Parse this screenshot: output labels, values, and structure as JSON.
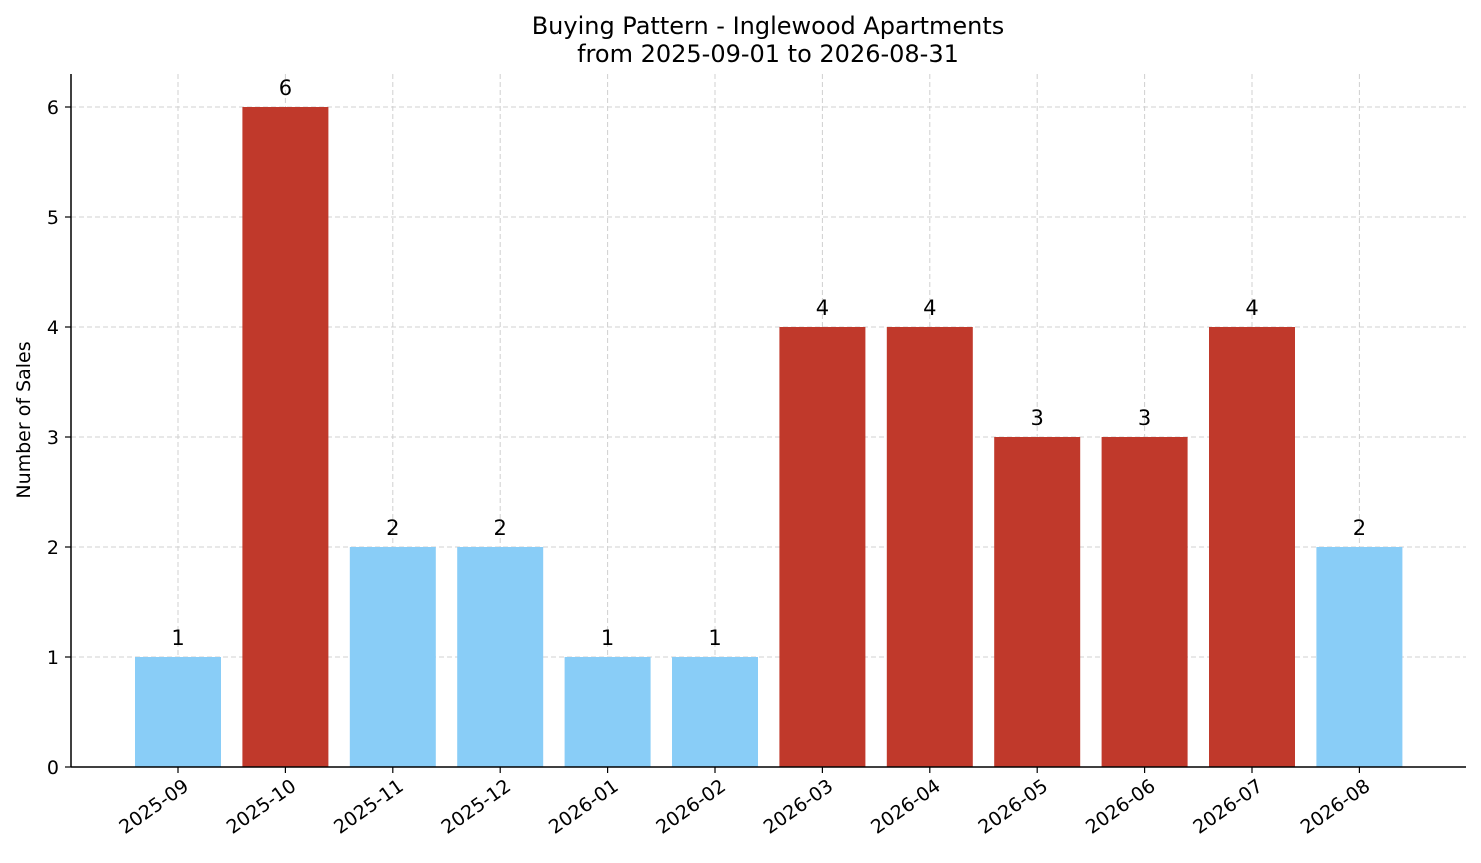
{
  "chart_data": {
    "type": "bar",
    "title": "Buying Pattern - Inglewood Apartments",
    "subtitle": "from 2025-09-01 to 2026-08-31",
    "xlabel": "",
    "ylabel": "Number of Sales",
    "categories": [
      "2025-09",
      "2025-10",
      "2025-11",
      "2025-12",
      "2026-01",
      "2026-02",
      "2026-03",
      "2026-04",
      "2026-05",
      "2026-06",
      "2026-07",
      "2026-08"
    ],
    "values": [
      1,
      6,
      2,
      2,
      1,
      1,
      4,
      4,
      3,
      3,
      4,
      2
    ],
    "highlight": [
      false,
      true,
      false,
      false,
      false,
      false,
      true,
      true,
      true,
      true,
      true,
      false
    ],
    "ylim": [
      0,
      6.3
    ],
    "yticks": [
      0,
      1,
      2,
      3,
      4,
      5,
      6
    ],
    "grid": true,
    "legend": "none",
    "colors": {
      "normal": "#89cdf7",
      "highlight": "#c0392b",
      "grid": "#d0d0d0",
      "axis": "#000000"
    }
  }
}
